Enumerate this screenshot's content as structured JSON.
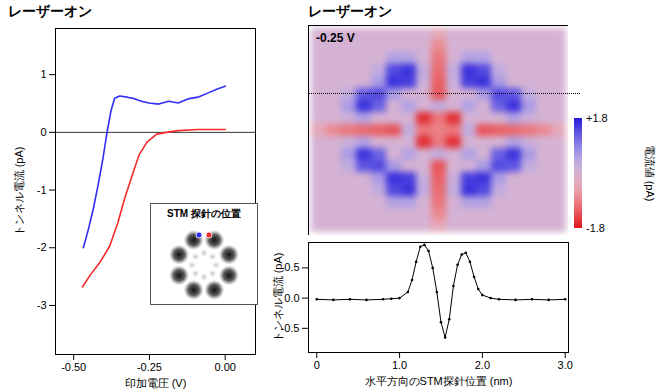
{
  "chart_data": [
    {
      "type": "line",
      "title": "レーザーオン",
      "x_label": "印加電圧 (V)",
      "y_label": "トンネル電流 (pA)",
      "xlim": [
        -0.56,
        0.1
      ],
      "ylim": [
        -3.85,
        1.8
      ],
      "xticks": [
        {
          "value": -0.5,
          "label": "-0.50"
        },
        -0.25,
        {
          "value": 0,
          "label": "0.00"
        }
      ],
      "yticks": [
        -3,
        -2,
        -1,
        0,
        1
      ],
      "hlines": [
        0
      ],
      "series": [
        {
          "color": "#2e2ef5",
          "x": [
            -0.468,
            -0.452,
            -0.435,
            -0.419,
            -0.403,
            -0.39,
            -0.377,
            -0.365,
            -0.348,
            -0.323,
            -0.297,
            -0.277,
            -0.252,
            -0.219,
            -0.187,
            -0.155,
            -0.123,
            -0.09,
            -0.058,
            -0.026,
            0.0
          ],
          "values": [
            -2.0,
            -1.69,
            -1.32,
            -0.9,
            -0.44,
            0.0,
            0.37,
            0.59,
            0.63,
            0.61,
            0.58,
            0.54,
            0.51,
            0.49,
            0.54,
            0.51,
            0.58,
            0.61,
            0.68,
            0.75,
            0.8
          ]
        },
        {
          "color": "#f52a2a",
          "x": [
            -0.471,
            -0.445,
            -0.413,
            -0.381,
            -0.355,
            -0.332,
            -0.306,
            -0.284,
            -0.258,
            -0.226,
            -0.194,
            -0.155,
            -0.09,
            0.0
          ],
          "values": [
            -2.68,
            -2.47,
            -2.25,
            -1.97,
            -1.58,
            -1.15,
            -0.73,
            -0.39,
            -0.17,
            -0.03,
            0.0,
            0.03,
            0.05,
            0.05
          ]
        }
      ],
      "inset": {
        "title": "STM 探針の位置"
      }
    },
    {
      "type": "heatmap",
      "title": "レーザーオン",
      "annotation": "-0.25 V",
      "tick_labels": false,
      "z": [
        [
          0,
          0,
          0,
          0,
          0,
          0,
          0,
          0,
          -0.4,
          0,
          0,
          0,
          0,
          0,
          0,
          0,
          0
        ],
        [
          0,
          0,
          0,
          0,
          0,
          0,
          0,
          0,
          -0.8,
          0,
          0,
          0,
          0,
          0,
          0,
          0,
          0
        ],
        [
          0,
          0,
          0,
          0,
          0,
          0.5,
          0.5,
          0,
          -1.0,
          0,
          0.5,
          0.5,
          0,
          0,
          0,
          0,
          0
        ],
        [
          0,
          0,
          0,
          0,
          0.3,
          1.4,
          1.6,
          0.3,
          -1.1,
          0.3,
          1.6,
          1.4,
          0.3,
          0,
          0,
          0,
          0
        ],
        [
          0,
          0,
          0,
          0,
          0.6,
          1.6,
          1.5,
          0.2,
          -1.2,
          0.2,
          1.5,
          1.6,
          0.6,
          0,
          0,
          0,
          0
        ],
        [
          0,
          0,
          0.3,
          1.3,
          1.4,
          0.6,
          0,
          0,
          -1.3,
          0,
          0,
          0.6,
          1.4,
          1.3,
          0.3,
          0,
          0
        ],
        [
          0,
          0,
          0.6,
          1.6,
          1.2,
          0,
          0.5,
          0,
          0.3,
          0,
          0.5,
          0,
          1.2,
          1.6,
          0.6,
          0,
          0
        ],
        [
          0,
          0,
          0.2,
          0.5,
          0,
          0,
          0,
          -1.6,
          -1.0,
          -1.6,
          0,
          0,
          0,
          0.5,
          0.2,
          0,
          0
        ],
        [
          -0.4,
          -0.8,
          -1.0,
          -1.1,
          -1.2,
          -1.3,
          0.3,
          -1.0,
          -0.9,
          -1.0,
          0.3,
          -1.3,
          -1.2,
          -1.1,
          -1.0,
          -0.8,
          -0.4
        ],
        [
          0,
          0,
          0.2,
          0.5,
          0,
          0,
          0,
          -1.6,
          -1.0,
          -1.6,
          0,
          0,
          0,
          0.5,
          0.2,
          0,
          0
        ],
        [
          0,
          0,
          0.6,
          1.6,
          1.2,
          0,
          0.5,
          0,
          0.3,
          0,
          0.5,
          0,
          1.2,
          1.6,
          0.6,
          0,
          0
        ],
        [
          0,
          0,
          0.3,
          1.3,
          1.4,
          0.6,
          0,
          0,
          -1.3,
          0,
          0,
          0.6,
          1.4,
          1.3,
          0.3,
          0,
          0
        ],
        [
          0,
          0,
          0,
          0,
          0.6,
          1.6,
          1.5,
          0.2,
          -1.2,
          0.2,
          1.5,
          1.6,
          0.6,
          0,
          0,
          0,
          0
        ],
        [
          0,
          0,
          0,
          0,
          0.3,
          1.4,
          1.6,
          0.3,
          -1.1,
          0.3,
          1.6,
          1.4,
          0.3,
          0,
          0,
          0,
          0
        ],
        [
          0,
          0,
          0,
          0,
          0,
          0.5,
          0.5,
          0,
          -1.0,
          0,
          0.5,
          0.5,
          0,
          0,
          0,
          0,
          0
        ],
        [
          0,
          0,
          0,
          0,
          0,
          0,
          0,
          0,
          -0.8,
          0,
          0,
          0,
          0,
          0,
          0,
          0,
          0
        ],
        [
          0,
          0,
          0,
          0,
          0,
          0,
          0,
          0,
          -0.4,
          0,
          0,
          0,
          0,
          0,
          0,
          0,
          0
        ]
      ],
      "colorbar_range": [
        -1.8,
        1.8
      ],
      "colorbar_ticks": [
        {
          "value": 1.8,
          "label": "+1.8"
        },
        -1.8
      ],
      "colorbar_label": "電流値 (pA)"
    },
    {
      "type": "line",
      "x_label": "水平方向のSTM探針位置 (nm)",
      "y_label": "トンネル電流 (pA)",
      "xlim": [
        -0.1,
        3.04
      ],
      "ylim": [
        -0.9,
        0.92
      ],
      "xticks": [
        0,
        {
          "value": 1,
          "label": "1.0"
        },
        {
          "value": 2,
          "label": "2.0"
        },
        {
          "value": 3,
          "label": "3.0"
        }
      ],
      "yticks": [
        -0.5,
        {
          "value": 0,
          "label": "0.0"
        },
        0.5
      ],
      "marker": "dot",
      "series": [
        {
          "color": "#000000",
          "x": [
            0,
            0.2,
            0.4,
            0.6,
            0.8,
            0.9,
            1.0,
            1.1,
            1.15,
            1.2,
            1.25,
            1.3,
            1.35,
            1.4,
            1.45,
            1.5,
            1.55,
            1.6,
            1.65,
            1.7,
            1.75,
            1.8,
            1.85,
            1.9,
            1.95,
            2.0,
            2.1,
            2.2,
            2.4,
            2.6,
            2.8,
            3.0
          ],
          "values": [
            -0.02,
            -0.03,
            -0.02,
            -0.03,
            -0.02,
            -0.01,
            0.0,
            0.1,
            0.3,
            0.6,
            0.85,
            0.88,
            0.78,
            0.5,
            0.1,
            -0.4,
            -0.65,
            -0.35,
            0.2,
            0.55,
            0.72,
            0.75,
            0.6,
            0.35,
            0.15,
            0.05,
            0.0,
            -0.02,
            -0.03,
            -0.02,
            -0.03,
            -0.02
          ]
        }
      ]
    }
  ]
}
